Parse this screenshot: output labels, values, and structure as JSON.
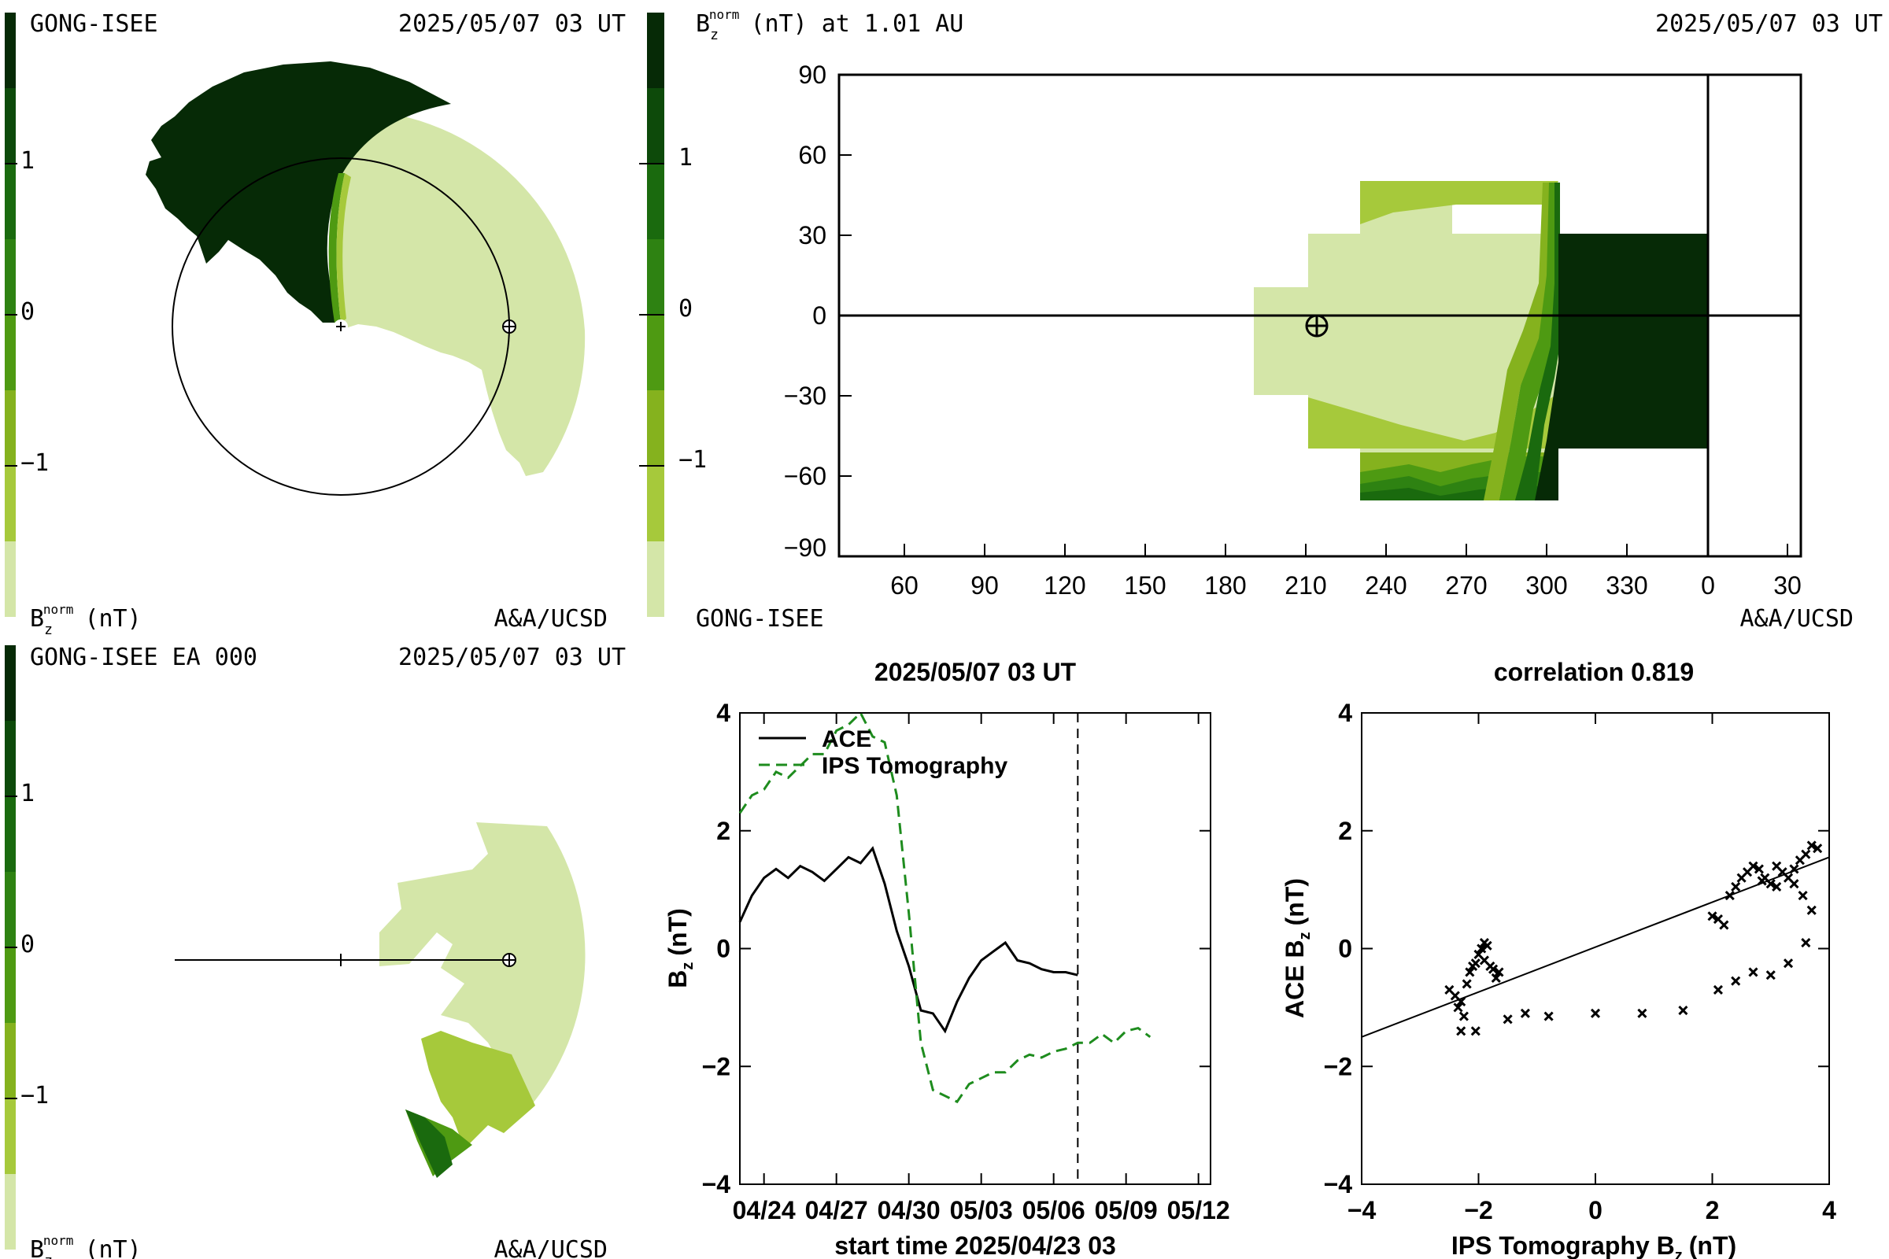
{
  "colors": {
    "ink": "#000000",
    "ace_line": "#000000",
    "ips_line": "#1e8c1e",
    "scale": [
      "#d4e6a8",
      "#a6c93b",
      "#85b21e",
      "#4e9a12",
      "#2e8212",
      "#1a6a0e",
      "#0d4a0a",
      "#062a06"
    ]
  },
  "panels": {
    "top_left": {
      "source": "GONG-ISEE",
      "timestamp": "2025/05/07 03 UT",
      "colorbar_label": "B",
      "colorbar_sub": "z",
      "colorbar_sup": "norm",
      "colorbar_unit": "(nT)",
      "colorbar_ticks": [
        "1",
        "0",
        "−1"
      ],
      "credit": "A&A/UCSD"
    },
    "bottom_left": {
      "source": "GONG-ISEE EA 000",
      "timestamp": "2025/05/07 03 UT",
      "colorbar_label": "B",
      "colorbar_sub": "z",
      "colorbar_sup": "norm",
      "colorbar_unit": "(nT)",
      "colorbar_ticks": [
        "1",
        "0",
        "−1"
      ],
      "credit": "A&A/UCSD"
    },
    "top_right": {
      "title_var": "B",
      "title_sub": "z",
      "title_sup": "norm",
      "title_rest": "(nT) at 1.01 AU",
      "timestamp": "2025/05/07 03 UT",
      "colorbar_ticks": [
        "1",
        "0",
        "−1"
      ],
      "source": "GONG-ISEE",
      "credit": "A&A/UCSD",
      "y_ticks": [
        "90",
        "60",
        "30",
        "0",
        "−30",
        "−60",
        "−90"
      ],
      "x_ticks": [
        "60",
        "90",
        "120",
        "150",
        "180",
        "210",
        "240",
        "270",
        "300",
        "330",
        "0",
        "30"
      ]
    }
  },
  "chart_data": [
    {
      "type": "line",
      "title": "2025/05/07 03 UT",
      "xlabel": "start time 2025/04/23 03",
      "ylabel_var": "B",
      "ylabel_sub": "z",
      "ylabel_unit": "(nT)",
      "x_unit": "days from start time",
      "xlim": [
        0,
        19.5
      ],
      "ylim": [
        -4,
        4
      ],
      "x_tick_values": [
        1,
        4,
        7,
        10,
        13,
        16,
        19
      ],
      "x_tick_labels": [
        "04/24",
        "04/27",
        "04/30",
        "05/03",
        "05/06",
        "05/09",
        "05/12"
      ],
      "y_tick_values": [
        4,
        2,
        0,
        -2,
        -4
      ],
      "y_tick_labels": [
        "4",
        "2",
        "0",
        "−2",
        "−4"
      ],
      "now_marker_x": 14,
      "legend_placement": "top-left",
      "series": [
        {
          "name": "ACE",
          "style": "solid",
          "x": [
            0,
            0.5,
            1,
            1.5,
            2,
            2.5,
            3,
            3.5,
            4,
            4.5,
            5,
            5.5,
            6,
            6.5,
            7,
            7.5,
            8,
            8.5,
            9,
            9.5,
            10,
            10.5,
            11,
            11.5,
            12,
            12.5,
            13,
            13.5,
            14
          ],
          "y": [
            0.45,
            0.9,
            1.2,
            1.35,
            1.2,
            1.4,
            1.3,
            1.15,
            1.35,
            1.55,
            1.45,
            1.7,
            1.1,
            0.3,
            -0.3,
            -1.05,
            -1.1,
            -1.4,
            -0.9,
            -0.5,
            -0.2,
            -0.05,
            0.1,
            -0.2,
            -0.25,
            -0.35,
            -0.4,
            -0.4,
            -0.45
          ]
        },
        {
          "name": "IPS Tomography",
          "style": "dashed",
          "x": [
            0,
            0.5,
            1,
            1.5,
            2,
            2.5,
            3,
            3.5,
            4,
            4.5,
            5,
            5.5,
            6,
            6.5,
            7,
            7.5,
            8,
            8.5,
            9,
            9.5,
            10,
            10.5,
            11,
            11.5,
            12,
            12.5,
            13,
            13.5,
            14,
            14.5,
            15,
            15.5,
            16,
            16.5,
            17
          ],
          "y": [
            2.3,
            2.6,
            2.7,
            3.0,
            2.9,
            3.1,
            3.3,
            3.3,
            3.7,
            3.8,
            4.0,
            3.6,
            3.5,
            2.6,
            0.6,
            -1.6,
            -2.4,
            -2.5,
            -2.6,
            -2.3,
            -2.2,
            -2.1,
            -2.1,
            -1.9,
            -1.8,
            -1.85,
            -1.75,
            -1.7,
            -1.6,
            -1.6,
            -1.45,
            -1.6,
            -1.4,
            -1.35,
            -1.5
          ]
        }
      ]
    },
    {
      "type": "scatter",
      "title": "correlation 0.819",
      "xlabel_pre": "IPS Tomography B",
      "xlabel_sub": "z",
      "xlabel_unit": "(nT)",
      "ylabel_pre": "ACE B",
      "ylabel_sub": "z",
      "ylabel_unit": "(nT)",
      "xlim": [
        -4,
        4
      ],
      "ylim": [
        -4,
        4
      ],
      "x_tick_values": [
        -4,
        -2,
        0,
        2,
        4
      ],
      "x_tick_labels": [
        "−4",
        "−2",
        "0",
        "2",
        "4"
      ],
      "y_tick_values": [
        4,
        2,
        0,
        -2,
        -4
      ],
      "y_tick_labels": [
        "4",
        "2",
        "0",
        "−2",
        "−4"
      ],
      "fit_line": {
        "x": [
          -4,
          4
        ],
        "y": [
          -1.5,
          1.55
        ]
      },
      "points": [
        [
          -2.5,
          -0.7
        ],
        [
          -2.4,
          -0.8
        ],
        [
          -2.35,
          -1.0
        ],
        [
          -2.3,
          -0.9
        ],
        [
          -2.25,
          -1.15
        ],
        [
          -2.2,
          -0.6
        ],
        [
          -2.15,
          -0.4
        ],
        [
          -2.1,
          -0.3
        ],
        [
          -2.0,
          -0.1
        ],
        [
          -1.95,
          0.0
        ],
        [
          -1.9,
          -0.2
        ],
        [
          -1.85,
          0.05
        ],
        [
          -1.8,
          -0.3
        ],
        [
          -1.75,
          -0.35
        ],
        [
          -1.7,
          -0.5
        ],
        [
          -1.65,
          -0.4
        ],
        [
          -2.05,
          -0.25
        ],
        [
          -1.9,
          0.1
        ],
        [
          -2.3,
          -1.4
        ],
        [
          -2.05,
          -1.4
        ],
        [
          -1.5,
          -1.2
        ],
        [
          -1.2,
          -1.1
        ],
        [
          -0.8,
          -1.15
        ],
        [
          0.0,
          -1.1
        ],
        [
          0.8,
          -1.1
        ],
        [
          1.5,
          -1.05
        ],
        [
          2.1,
          -0.7
        ],
        [
          2.4,
          -0.55
        ],
        [
          2.7,
          -0.4
        ],
        [
          3.0,
          -0.45
        ],
        [
          3.3,
          -0.25
        ],
        [
          3.6,
          0.1
        ],
        [
          2.0,
          0.55
        ],
        [
          2.1,
          0.5
        ],
        [
          2.2,
          0.4
        ],
        [
          2.3,
          0.9
        ],
        [
          2.4,
          1.05
        ],
        [
          2.5,
          1.2
        ],
        [
          2.6,
          1.3
        ],
        [
          2.7,
          1.4
        ],
        [
          2.8,
          1.35
        ],
        [
          2.9,
          1.2
        ],
        [
          3.0,
          1.1
        ],
        [
          3.1,
          1.4
        ],
        [
          3.2,
          1.3
        ],
        [
          3.3,
          1.2
        ],
        [
          3.4,
          1.35
        ],
        [
          3.5,
          1.5
        ],
        [
          3.6,
          1.6
        ],
        [
          3.7,
          1.75
        ],
        [
          3.8,
          1.7
        ],
        [
          3.55,
          0.9
        ],
        [
          3.7,
          0.65
        ],
        [
          3.4,
          1.1
        ],
        [
          3.1,
          1.05
        ],
        [
          2.85,
          1.15
        ]
      ]
    }
  ]
}
